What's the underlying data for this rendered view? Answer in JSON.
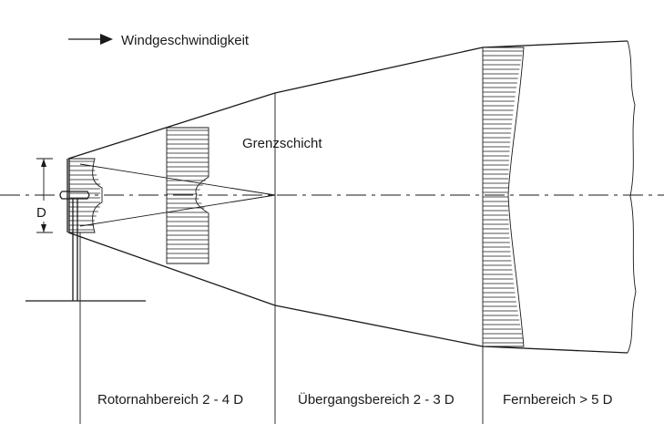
{
  "legend": {
    "arrow_label": "Windgeschwindigkeit"
  },
  "labels": {
    "diameter": "D",
    "boundary_layer": "Grenzschicht"
  },
  "regions": [
    {
      "label": "Rotornahbereich 2 - 4 D"
    },
    {
      "label": "Übergangsbereich 2 - 3 D"
    },
    {
      "label": "Fernbereich > 5 D"
    }
  ]
}
